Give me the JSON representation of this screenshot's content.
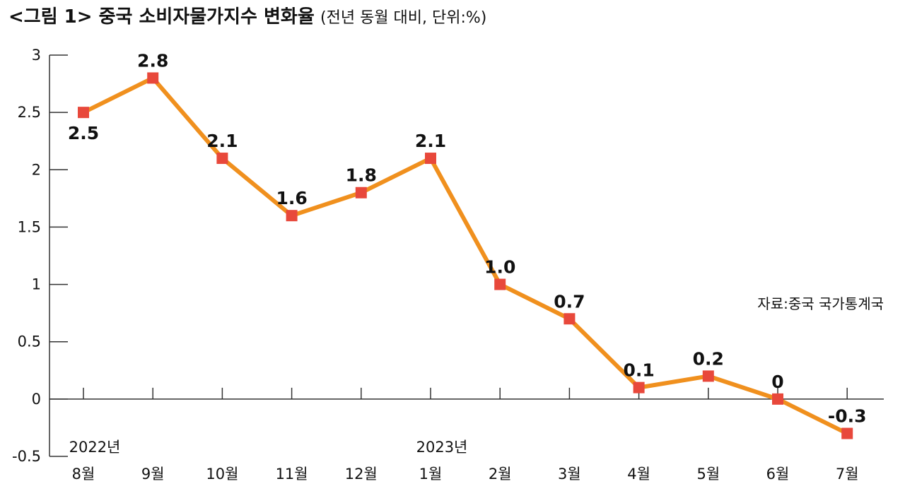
{
  "title": {
    "main": "<그림 1> 중국 소비자물가지수 변화율",
    "sub": "(전년 동월 대비, 단위:%)"
  },
  "source": "자료:중국 국가통계국",
  "chart_data": {
    "type": "line",
    "title": "<그림 1> 중국 소비자물가지수 변화율",
    "subtitle": "(전년 동월 대비, 단위:%)",
    "categories": [
      "8월",
      "9월",
      "10월",
      "11월",
      "12월",
      "1월",
      "2월",
      "3월",
      "4월",
      "5월",
      "6월",
      "7월"
    ],
    "year_labels": [
      {
        "category": "8월",
        "text": "2022년"
      },
      {
        "category": "1월",
        "text": "2023년"
      }
    ],
    "values": [
      2.5,
      2.8,
      2.1,
      1.6,
      1.8,
      2.1,
      1.0,
      0.7,
      0.1,
      0.2,
      0,
      -0.3
    ],
    "value_labels": [
      "2.5",
      "2.8",
      "2.1",
      "1.6",
      "1.8",
      "2.1",
      "1.0",
      "0.7",
      "0.1",
      "0.2",
      "0",
      "-0.3"
    ],
    "yticks": [
      "3",
      "2.5",
      "2",
      "1.5",
      "1",
      "0.5",
      "0",
      "-0.5"
    ],
    "ylim": [
      -0.5,
      3
    ],
    "grid": false,
    "line_color": "#F0901E",
    "marker_color": "#E8483B",
    "axis_color": "#333333",
    "source": "자료:중국 국가통계국"
  }
}
